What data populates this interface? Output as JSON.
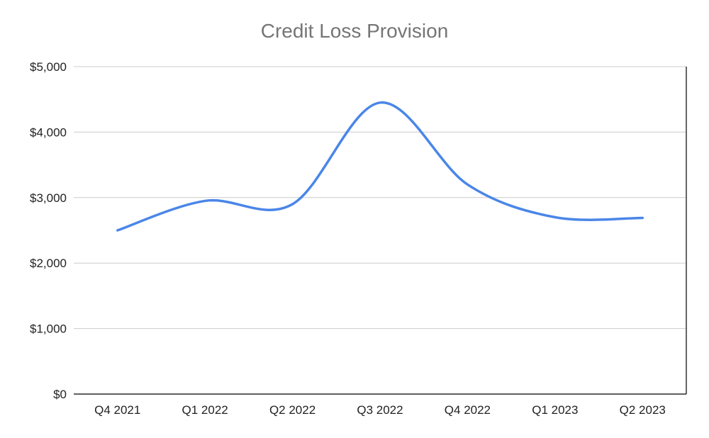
{
  "chart_data": {
    "type": "line",
    "title": "Credit Loss Provision",
    "xlabel": "",
    "ylabel": "",
    "categories": [
      "Q4 2021",
      "Q1 2022",
      "Q2 2022",
      "Q3 2022",
      "Q4 2022",
      "Q1 2023",
      "Q2 2023"
    ],
    "series": [
      {
        "values": [
          2500,
          2950,
          2900,
          4450,
          3200,
          2700,
          2690
        ]
      }
    ],
    "ylim": [
      0,
      5000
    ],
    "yticks": [
      0,
      1000,
      2000,
      3000,
      4000,
      5000
    ],
    "ytick_labels": [
      "$0",
      "$1,000",
      "$2,000",
      "$3,000",
      "$4,000",
      "$5,000"
    ],
    "grid": true,
    "legend": "none",
    "colors": {
      "line": "#4a86e8",
      "grid": "#cccccc",
      "axis": "#000000"
    }
  }
}
